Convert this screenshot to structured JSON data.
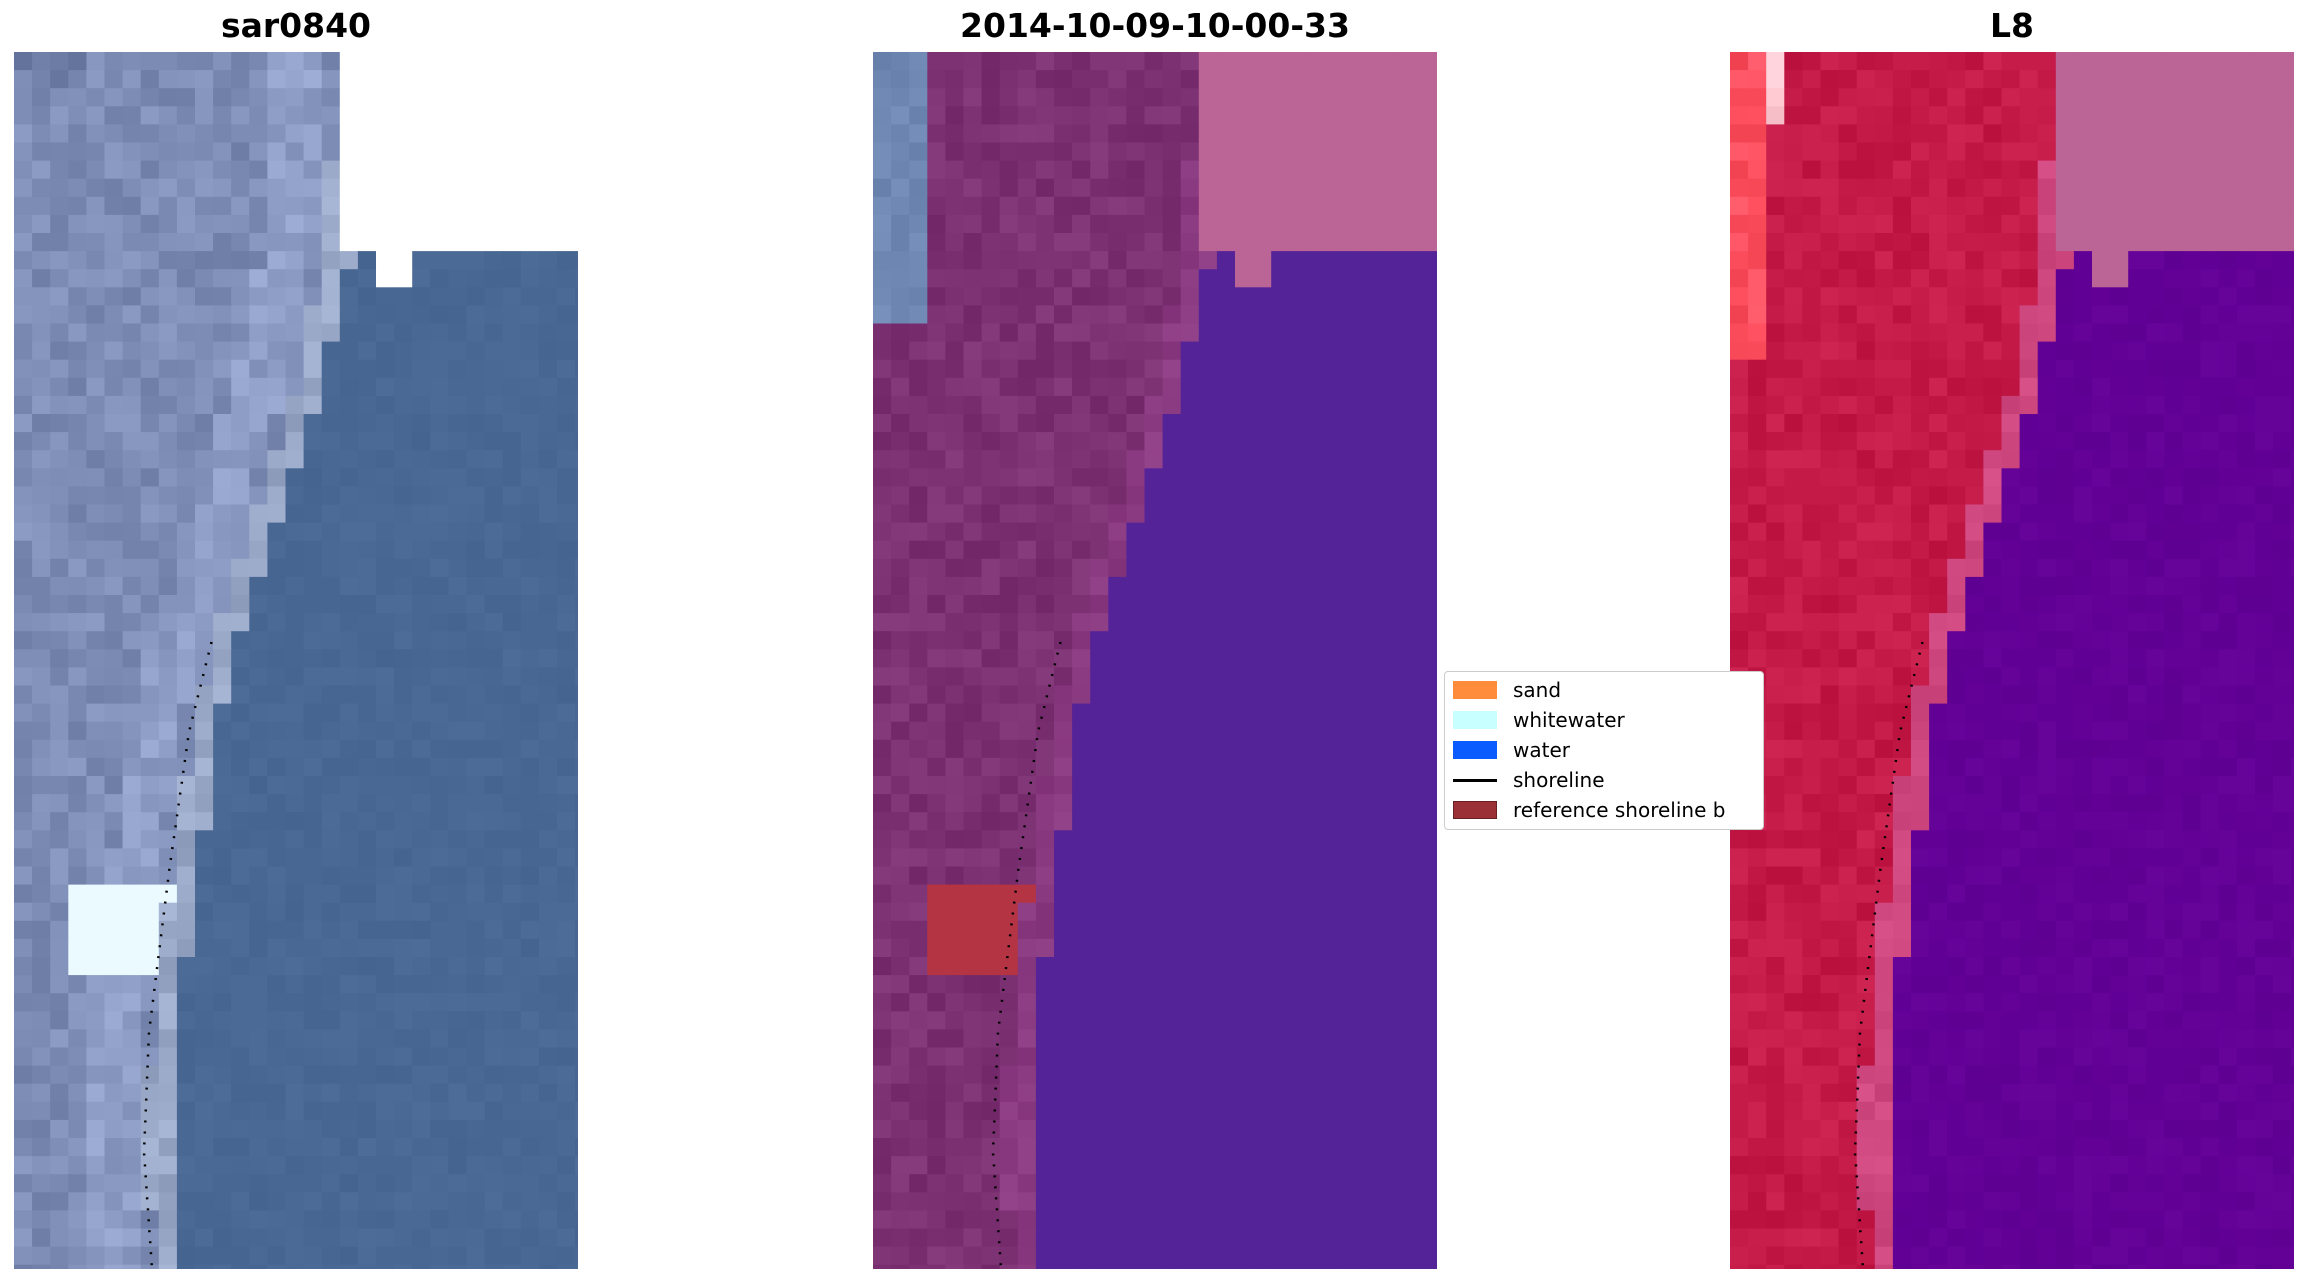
{
  "panels": [
    {
      "title": "sar0840",
      "style": "rgb"
    },
    {
      "title": "2014-10-09-10-00-33",
      "style": "classified"
    },
    {
      "title": "L8",
      "style": "falsecolor"
    }
  ],
  "legend": {
    "items": [
      {
        "label": "sand",
        "color": "#ff8c3a",
        "kind": "patch"
      },
      {
        "label": "whitewater",
        "color": "#c8ffff",
        "kind": "patch"
      },
      {
        "label": "water",
        "color": "#0a5cff",
        "kind": "patch"
      },
      {
        "label": "shoreline",
        "color": "#000000",
        "kind": "line"
      },
      {
        "label": "reference shoreline b",
        "color": "#9b3036",
        "kind": "patch"
      }
    ]
  },
  "colors": {
    "rgb_land": "#7c8cb4",
    "rgb_water": "#4a6894",
    "class_land": "#7c3272",
    "class_water": "#552398",
    "class_buffer": "#bb6496",
    "class_ref": "#b43444",
    "fc_land": "#c41a48",
    "fc_water": "#620096",
    "fc_buffer": "#bb6496"
  }
}
